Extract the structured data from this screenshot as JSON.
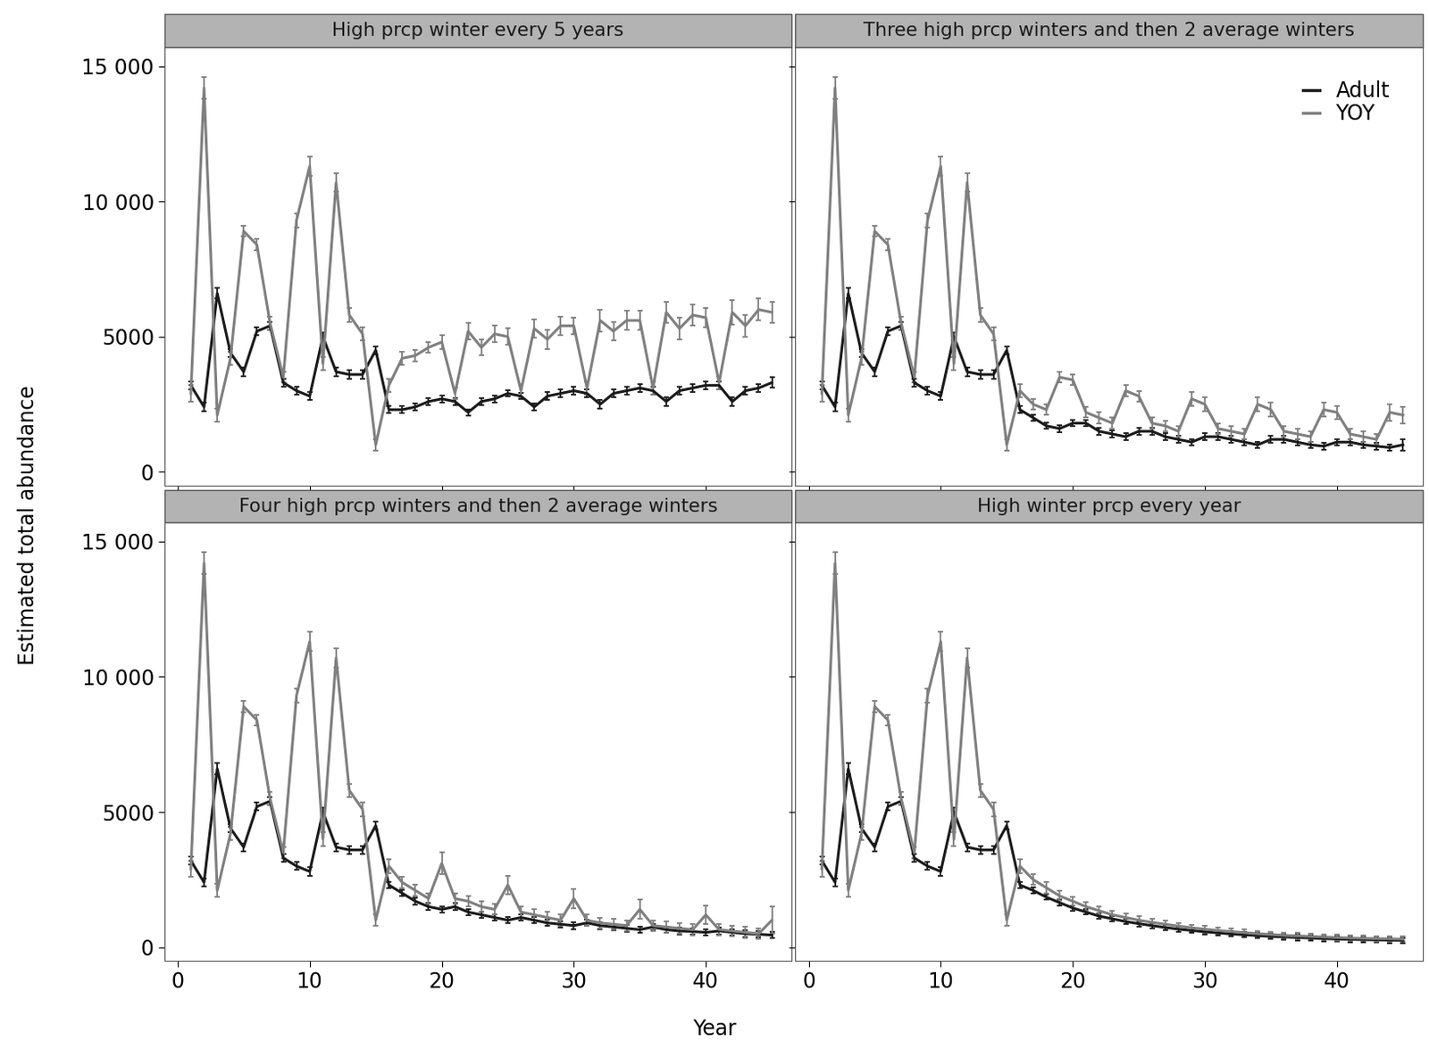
{
  "x_label": "Year",
  "y_label": "Estimated total abundance",
  "chart_data": [
    {
      "type": "line",
      "title": "High prcp winter every 5 years",
      "tick_labels": "y",
      "x": [
        1,
        2,
        3,
        4,
        5,
        6,
        7,
        8,
        9,
        10,
        11,
        12,
        13,
        14,
        15,
        16,
        17,
        18,
        19,
        20,
        21,
        22,
        23,
        24,
        25,
        26,
        27,
        28,
        29,
        30,
        31,
        32,
        33,
        34,
        35,
        36,
        37,
        38,
        39,
        40,
        41,
        42,
        43,
        44,
        45
      ],
      "xlim": [
        -1,
        46.5
      ],
      "ylim": [
        -500,
        15700
      ],
      "xticks": [
        0,
        10,
        20,
        30,
        40
      ],
      "yticks": [
        0,
        5000,
        {
          "value": 10000,
          "label": "10 000"
        },
        {
          "value": 15000,
          "label": "15 000"
        }
      ],
      "series": [
        {
          "name": "Adult",
          "color": "#1a1a1a",
          "line_style": "solid",
          "values": [
            3200,
            2400,
            6600,
            4400,
            3700,
            5200,
            5400,
            3300,
            3000,
            2800,
            5000,
            3700,
            3600,
            3600,
            4500,
            2300,
            2300,
            2400,
            2600,
            2700,
            2600,
            2200,
            2600,
            2700,
            2900,
            2800,
            2400,
            2800,
            2900,
            3000,
            2900,
            2500,
            2900,
            3000,
            3100,
            3000,
            2600,
            3000,
            3100,
            3200,
            3200,
            2600,
            3000,
            3100,
            3300
          ],
          "errors": [
            150,
            150,
            200,
            150,
            150,
            150,
            150,
            150,
            150,
            150,
            150,
            150,
            150,
            150,
            150,
            120,
            120,
            120,
            120,
            120,
            120,
            120,
            120,
            120,
            120,
            120,
            120,
            150,
            150,
            150,
            150,
            150,
            150,
            150,
            150,
            150,
            150,
            150,
            150,
            150,
            150,
            150,
            150,
            150,
            200
          ]
        },
        {
          "name": "YOY",
          "color": "#7f7f7f",
          "line_style": "solid",
          "values": [
            2900,
            14200,
            2100,
            4200,
            8900,
            8400,
            5500,
            3500,
            9300,
            11300,
            4000,
            10700,
            5800,
            5100,
            1000,
            3200,
            4200,
            4300,
            4600,
            4800,
            2900,
            5200,
            4600,
            5100,
            5000,
            3000,
            5300,
            4900,
            5400,
            5400,
            3100,
            5600,
            5200,
            5600,
            5600,
            3100,
            5900,
            5300,
            5800,
            5700,
            3300,
            5900,
            5400,
            6000,
            5900
          ],
          "errors": [
            300,
            400,
            250,
            250,
            200,
            200,
            250,
            200,
            250,
            350,
            250,
            350,
            250,
            250,
            200,
            250,
            250,
            200,
            200,
            250,
            200,
            300,
            300,
            300,
            300,
            250,
            350,
            350,
            350,
            300,
            250,
            400,
            350,
            350,
            350,
            250,
            400,
            400,
            400,
            350,
            250,
            450,
            400,
            400,
            400
          ]
        }
      ]
    },
    {
      "type": "line",
      "title": "Three high prcp winters and then 2 average winters",
      "tick_labels": false,
      "legend": "upper right",
      "x": [
        1,
        2,
        3,
        4,
        5,
        6,
        7,
        8,
        9,
        10,
        11,
        12,
        13,
        14,
        15,
        16,
        17,
        18,
        19,
        20,
        21,
        22,
        23,
        24,
        25,
        26,
        27,
        28,
        29,
        30,
        31,
        32,
        33,
        34,
        35,
        36,
        37,
        38,
        39,
        40,
        41,
        42,
        43,
        44,
        45
      ],
      "xlim": [
        -1,
        46.5
      ],
      "ylim": [
        -500,
        15700
      ],
      "xticks": [
        0,
        10,
        20,
        30,
        40
      ],
      "yticks": [
        0,
        5000,
        {
          "value": 10000,
          "label": "10 000"
        },
        {
          "value": 15000,
          "label": "15 000"
        }
      ],
      "series": [
        {
          "name": "Adult",
          "color": "#1a1a1a",
          "line_style": "solid",
          "values": [
            3200,
            2400,
            6600,
            4400,
            3700,
            5200,
            5400,
            3300,
            3000,
            2800,
            5000,
            3700,
            3600,
            3600,
            4500,
            2300,
            2000,
            1700,
            1600,
            1800,
            1800,
            1500,
            1400,
            1300,
            1500,
            1500,
            1300,
            1200,
            1100,
            1300,
            1300,
            1200,
            1100,
            1000,
            1200,
            1200,
            1100,
            1000,
            950,
            1100,
            1100,
            1000,
            950,
            900,
            1000
          ],
          "errors": [
            150,
            150,
            200,
            150,
            150,
            150,
            150,
            150,
            150,
            150,
            150,
            150,
            150,
            150,
            150,
            120,
            120,
            120,
            120,
            120,
            120,
            120,
            120,
            120,
            120,
            120,
            120,
            120,
            120,
            120,
            120,
            120,
            120,
            120,
            120,
            120,
            120,
            120,
            120,
            120,
            120,
            120,
            120,
            120,
            200
          ]
        },
        {
          "name": "YOY",
          "color": "#7f7f7f",
          "line_style": "solid",
          "values": [
            2900,
            14200,
            2100,
            4200,
            8900,
            8400,
            5500,
            3500,
            9300,
            11300,
            4000,
            10700,
            5800,
            5100,
            1000,
            3000,
            2500,
            2300,
            3500,
            3400,
            2200,
            2000,
            1800,
            3000,
            2800,
            1800,
            1700,
            1500,
            2700,
            2500,
            1600,
            1500,
            1400,
            2500,
            2300,
            1500,
            1400,
            1300,
            2300,
            2200,
            1400,
            1300,
            1200,
            2200,
            2100
          ],
          "errors": [
            300,
            400,
            250,
            250,
            200,
            200,
            250,
            200,
            250,
            350,
            250,
            350,
            250,
            250,
            200,
            250,
            200,
            200,
            200,
            200,
            200,
            200,
            200,
            200,
            200,
            200,
            200,
            200,
            250,
            250,
            200,
            200,
            200,
            250,
            250,
            200,
            200,
            200,
            250,
            250,
            200,
            200,
            200,
            300,
            300
          ]
        }
      ]
    },
    {
      "type": "line",
      "title": "Four high prcp winters and then 2 average winters",
      "x": [
        1,
        2,
        3,
        4,
        5,
        6,
        7,
        8,
        9,
        10,
        11,
        12,
        13,
        14,
        15,
        16,
        17,
        18,
        19,
        20,
        21,
        22,
        23,
        24,
        25,
        26,
        27,
        28,
        29,
        30,
        31,
        32,
        33,
        34,
        35,
        36,
        37,
        38,
        39,
        40,
        41,
        42,
        43,
        44,
        45
      ],
      "xlim": [
        -1,
        46.5
      ],
      "ylim": [
        -500,
        15700
      ],
      "xticks": [
        0,
        10,
        20,
        30,
        40
      ],
      "yticks": [
        0,
        5000,
        {
          "value": 10000,
          "label": "10 000"
        },
        {
          "value": 15000,
          "label": "15 000"
        }
      ],
      "series": [
        {
          "name": "Adult",
          "color": "#1a1a1a",
          "line_style": "solid",
          "values": [
            3200,
            2400,
            6600,
            4400,
            3700,
            5200,
            5400,
            3300,
            3000,
            2800,
            5000,
            3700,
            3600,
            3600,
            4500,
            2300,
            2000,
            1700,
            1500,
            1400,
            1500,
            1300,
            1200,
            1100,
            1000,
            1100,
            1000,
            900,
            850,
            800,
            900,
            800,
            750,
            700,
            650,
            750,
            650,
            600,
            580,
            550,
            600,
            550,
            500,
            480,
            450
          ],
          "errors": [
            150,
            150,
            200,
            150,
            150,
            150,
            150,
            150,
            150,
            150,
            150,
            150,
            150,
            150,
            150,
            120,
            120,
            120,
            120,
            120,
            120,
            120,
            120,
            120,
            120,
            120,
            120,
            120,
            120,
            120,
            120,
            120,
            120,
            120,
            120,
            120,
            120,
            120,
            120,
            120,
            120,
            120,
            120,
            120,
            120
          ]
        },
        {
          "name": "YOY",
          "color": "#7f7f7f",
          "line_style": "solid",
          "values": [
            2900,
            14200,
            2100,
            4200,
            8900,
            8400,
            5500,
            3500,
            9300,
            11300,
            4000,
            10700,
            5800,
            5100,
            1000,
            3000,
            2400,
            2100,
            1800,
            3100,
            1800,
            1700,
            1500,
            1400,
            2300,
            1300,
            1200,
            1100,
            1000,
            1800,
            1000,
            900,
            850,
            800,
            1400,
            800,
            750,
            700,
            650,
            1200,
            650,
            600,
            550,
            500,
            1000
          ],
          "errors": [
            300,
            400,
            250,
            250,
            200,
            200,
            250,
            200,
            250,
            350,
            250,
            350,
            250,
            250,
            200,
            250,
            200,
            200,
            200,
            400,
            200,
            200,
            200,
            200,
            350,
            200,
            200,
            200,
            200,
            350,
            200,
            200,
            200,
            200,
            350,
            200,
            200,
            200,
            200,
            350,
            200,
            200,
            200,
            200,
            500
          ]
        }
      ]
    },
    {
      "type": "line",
      "title": "High winter prcp every year",
      "tick_labels": "x",
      "x": [
        1,
        2,
        3,
        4,
        5,
        6,
        7,
        8,
        9,
        10,
        11,
        12,
        13,
        14,
        15,
        16,
        17,
        18,
        19,
        20,
        21,
        22,
        23,
        24,
        25,
        26,
        27,
        28,
        29,
        30,
        31,
        32,
        33,
        34,
        35,
        36,
        37,
        38,
        39,
        40,
        41,
        42,
        43,
        44,
        45
      ],
      "xlim": [
        -1,
        46.5
      ],
      "ylim": [
        -500,
        15700
      ],
      "xticks": [
        0,
        10,
        20,
        30,
        40
      ],
      "yticks": [
        0,
        5000,
        {
          "value": 10000,
          "label": "10 000"
        },
        {
          "value": 15000,
          "label": "15 000"
        }
      ],
      "series": [
        {
          "name": "Adult",
          "color": "#1a1a1a",
          "line_style": "solid",
          "values": [
            3200,
            2400,
            6600,
            4400,
            3700,
            5200,
            5400,
            3300,
            3000,
            2800,
            5000,
            3700,
            3600,
            3600,
            4500,
            2300,
            2100,
            1850,
            1650,
            1450,
            1300,
            1150,
            1050,
            950,
            870,
            800,
            730,
            670,
            620,
            570,
            530,
            490,
            460,
            430,
            400,
            380,
            360,
            340,
            320,
            300,
            290,
            280,
            270,
            260,
            250
          ],
          "errors": [
            150,
            150,
            200,
            150,
            150,
            150,
            150,
            150,
            150,
            150,
            150,
            150,
            150,
            150,
            150,
            120,
            120,
            100,
            100,
            100,
            100,
            100,
            100,
            100,
            100,
            100,
            100,
            100,
            100,
            100,
            100,
            100,
            100,
            100,
            100,
            100,
            100,
            100,
            100,
            100,
            100,
            100,
            100,
            100,
            100
          ]
        },
        {
          "name": "YOY",
          "color": "#7f7f7f",
          "line_style": "solid",
          "values": [
            2900,
            14200,
            2100,
            4200,
            8900,
            8400,
            5500,
            3500,
            9300,
            11300,
            4000,
            10700,
            5800,
            5100,
            1000,
            3000,
            2500,
            2200,
            1900,
            1700,
            1500,
            1350,
            1200,
            1100,
            1000,
            920,
            850,
            780,
            720,
            670,
            620,
            580,
            540,
            500,
            470,
            440,
            420,
            400,
            380,
            360,
            340,
            330,
            320,
            310,
            300
          ],
          "errors": [
            300,
            400,
            250,
            250,
            200,
            200,
            250,
            200,
            250,
            350,
            250,
            350,
            250,
            250,
            200,
            250,
            200,
            200,
            180,
            170,
            160,
            150,
            150,
            140,
            140,
            130,
            130,
            120,
            120,
            120,
            110,
            110,
            110,
            110,
            100,
            100,
            100,
            100,
            100,
            100,
            100,
            100,
            100,
            100,
            100
          ]
        }
      ]
    }
  ]
}
